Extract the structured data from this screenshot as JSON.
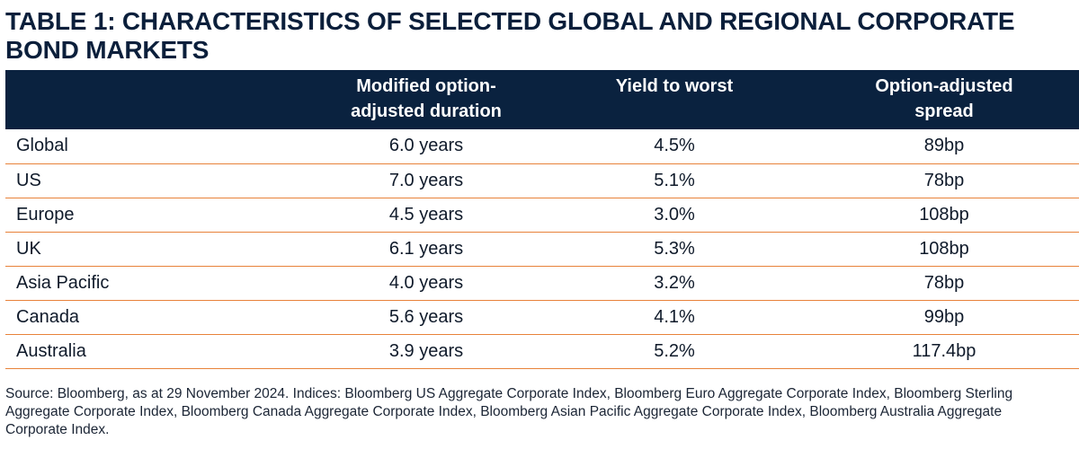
{
  "title": "TABLE 1: CHARACTERISTICS OF SELECTED GLOBAL AND REGIONAL CORPORATE BOND MARKETS",
  "table": {
    "headers": {
      "market": "",
      "duration_line1": "Modified option-",
      "duration_line2": "adjusted duration",
      "yield": "Yield to worst",
      "spread_line1": "Option-adjusted",
      "spread_line2": "spread"
    },
    "rows": [
      {
        "market": "Global",
        "duration": "6.0 years",
        "yield": "4.5%",
        "spread": "89bp"
      },
      {
        "market": "US",
        "duration": "7.0 years",
        "yield": "5.1%",
        "spread": "78bp"
      },
      {
        "market": "Europe",
        "duration": "4.5 years",
        "yield": "3.0%",
        "spread": "108bp"
      },
      {
        "market": "UK",
        "duration": "6.1 years",
        "yield": "5.3%",
        "spread": "108bp"
      },
      {
        "market": "Asia Pacific",
        "duration": "4.0 years",
        "yield": "3.2%",
        "spread": "78bp"
      },
      {
        "market": "Canada",
        "duration": "5.6 years",
        "yield": "4.1%",
        "spread": "99bp"
      },
      {
        "market": "Australia",
        "duration": "3.9 years",
        "yield": "5.2%",
        "spread": "117.4bp"
      }
    ]
  },
  "source": "Source: Bloomberg, as at 29 November 2024. Indices: Bloomberg US Aggregate Corporate Index, Bloomberg Euro Aggregate Corporate Index, Bloomberg Sterling Aggregate Corporate Index, Bloomberg Canada Aggregate Corporate Index, Bloomberg Asian Pacific Aggregate Corporate Index, Bloomberg Australia Aggregate Corporate Index.",
  "colors": {
    "header_background": "#0a223f",
    "row_divider": "#e8823a",
    "title_text": "#0b1f3b"
  }
}
